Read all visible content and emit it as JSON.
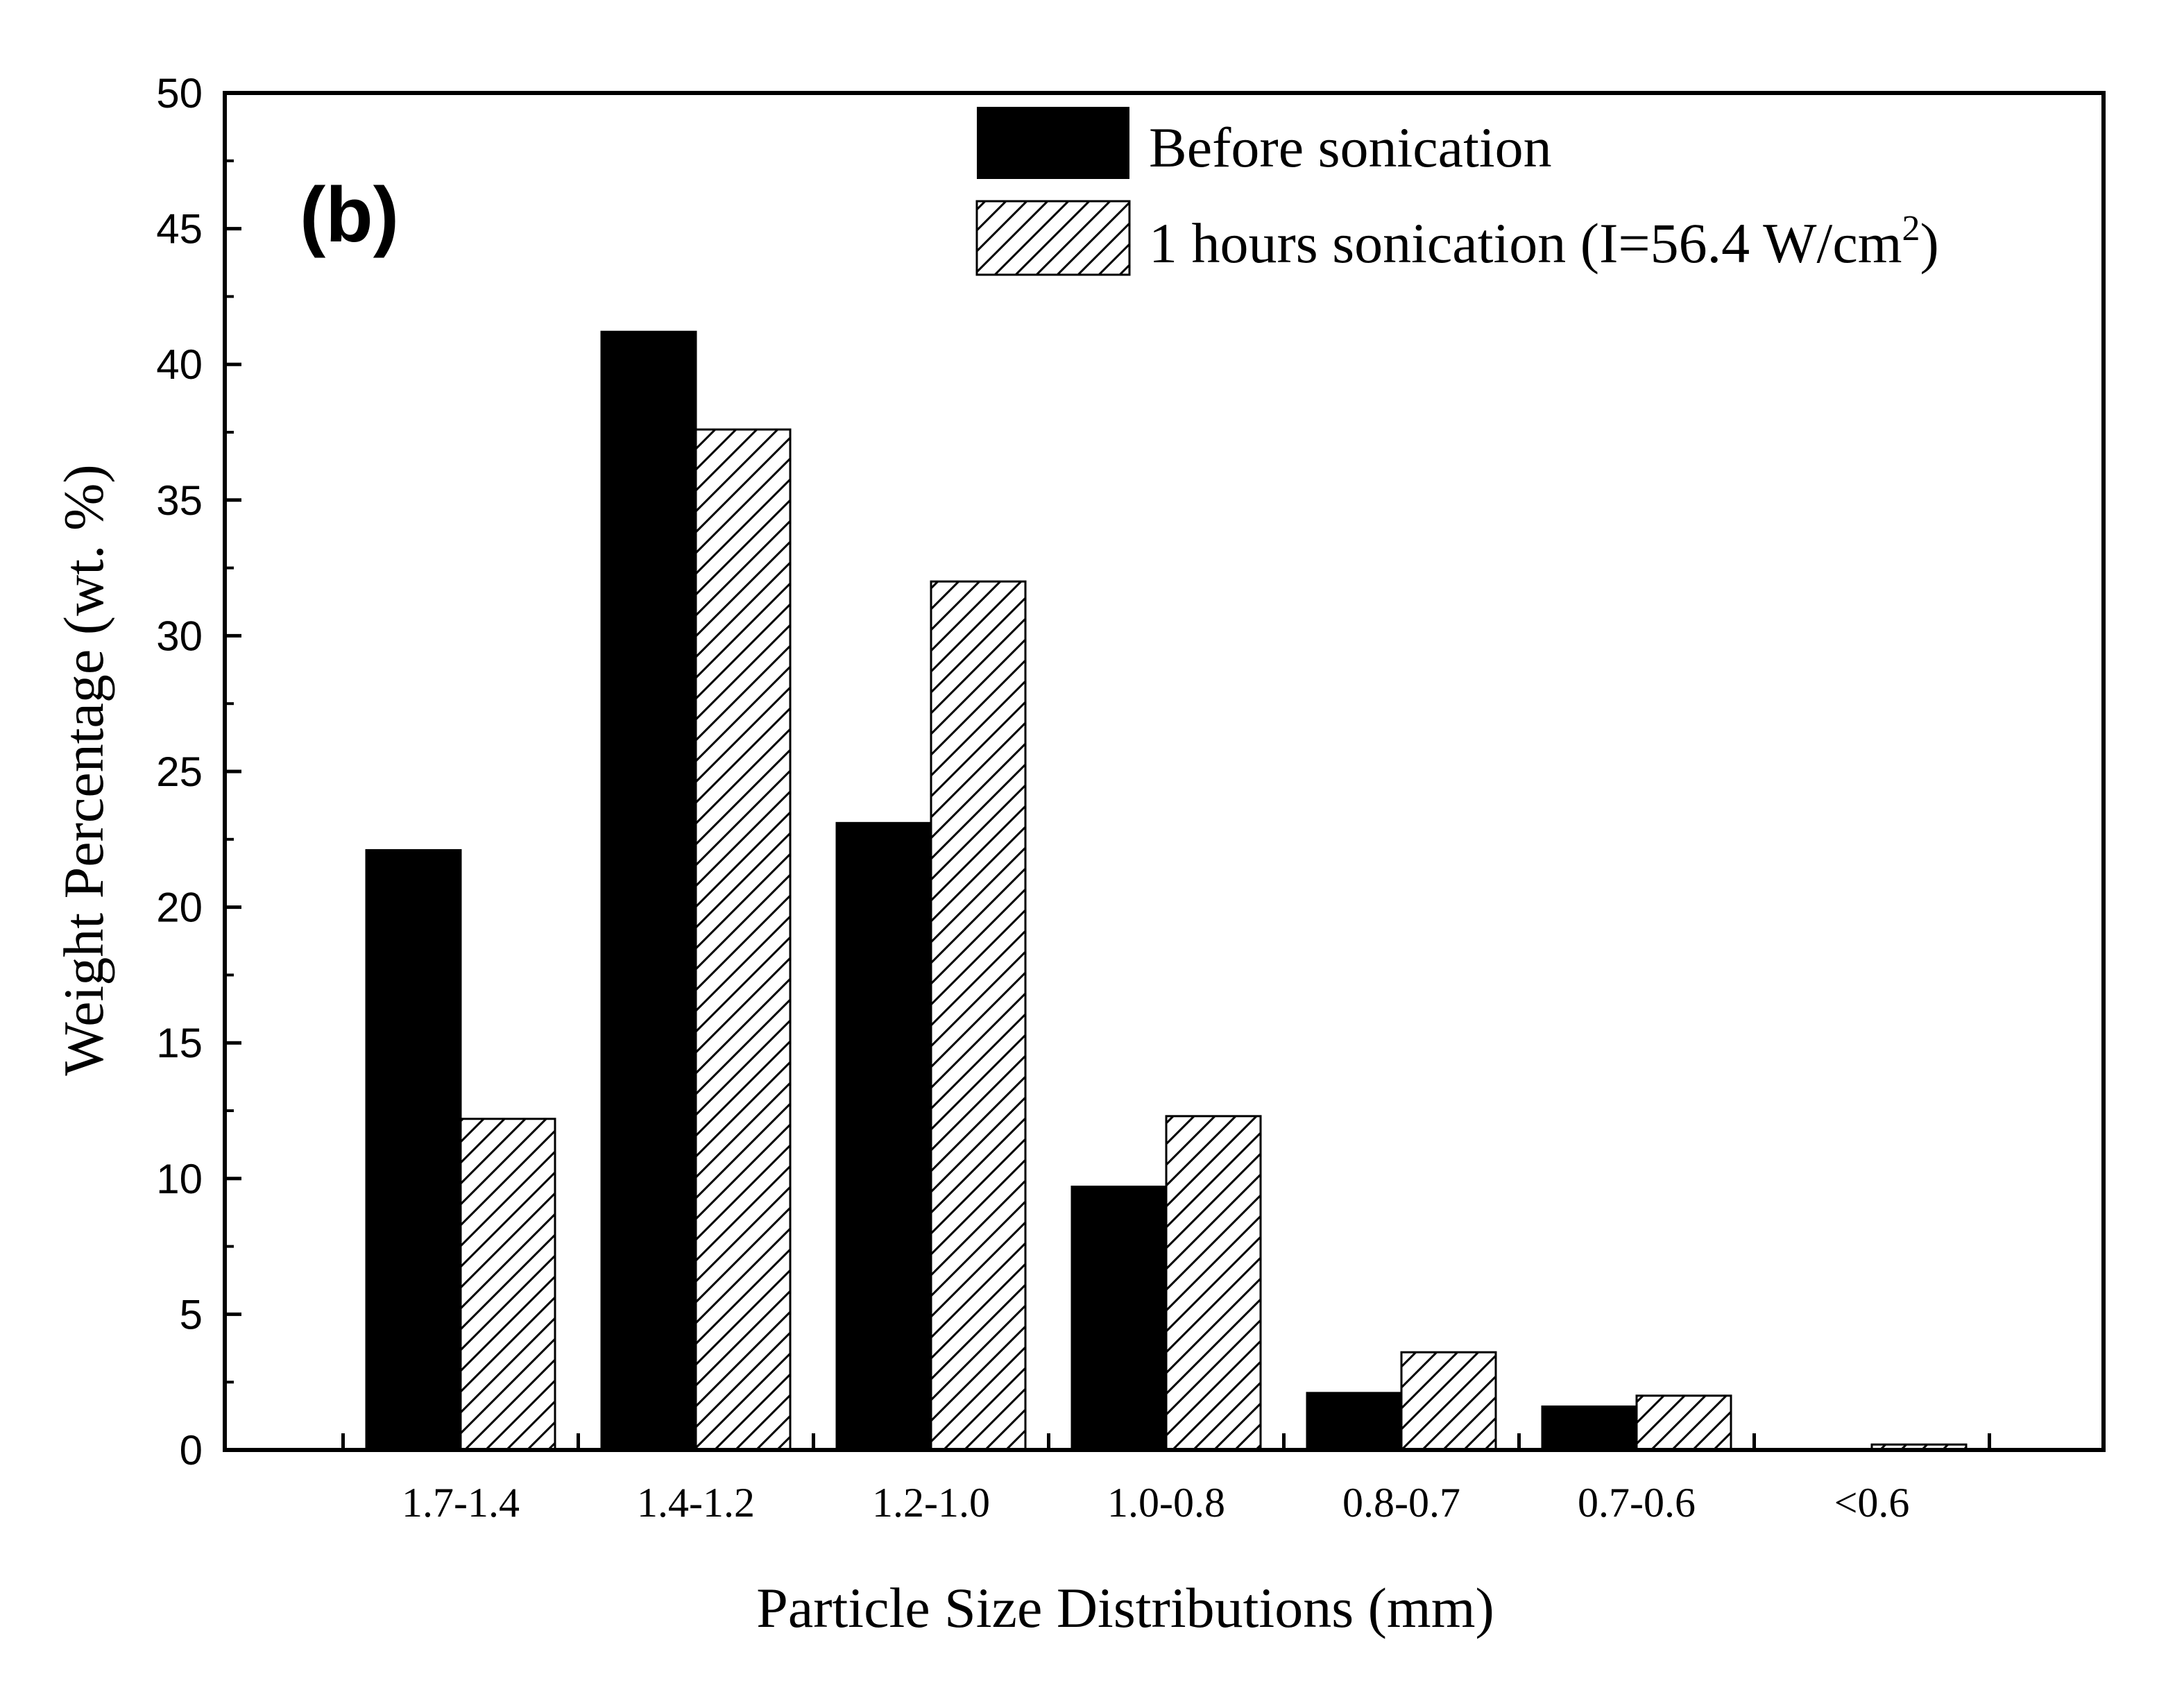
{
  "chart_data": {
    "type": "bar",
    "panel_label": "(b)",
    "title": "",
    "xlabel": "Particle Size Distributions (mm)",
    "ylabel": "Weight Percentage (wt. %)",
    "ylim": [
      0,
      50
    ],
    "yticks": [
      0,
      5,
      10,
      15,
      20,
      25,
      30,
      35,
      40,
      45,
      50
    ],
    "categories": [
      "1.7-1.4",
      "1.4-1.2",
      "1.2-1.0",
      "1.0-0.8",
      "0.8-0.7",
      "0.7-0.6",
      "<0.6"
    ],
    "series": [
      {
        "name": "Before sonication",
        "fill": "solid",
        "color": "#000000",
        "values": [
          22.1,
          41.2,
          23.1,
          9.7,
          2.1,
          1.6,
          0
        ]
      },
      {
        "name": "1 hours sonication (I=56.4 W/cm",
        "name_superscript": "2",
        "name_suffix": ")",
        "fill": "hatched",
        "color": "#000000",
        "values": [
          12.2,
          37.6,
          32.0,
          12.3,
          3.6,
          2.0,
          0.2
        ]
      }
    ],
    "legend_position": "top-right",
    "grid": false
  }
}
